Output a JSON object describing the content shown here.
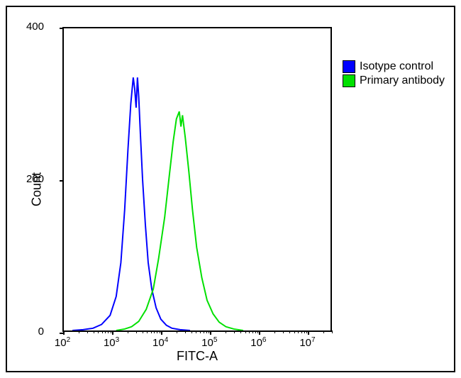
{
  "chart": {
    "type": "histogram",
    "xlabel": "FITC-A",
    "ylabel": "Count",
    "x_axis": {
      "scale": "log",
      "min": 100,
      "max": 31622776,
      "tick_exponents": [
        2,
        3,
        4,
        5,
        6,
        7
      ],
      "tick_label_prefix": "10"
    },
    "y_axis": {
      "scale": "linear",
      "min": 0,
      "max": 400,
      "ticks": [
        0,
        200,
        400
      ]
    },
    "background_color": "#ffffff",
    "axis_color": "#000000",
    "label_fontsize": 18,
    "tick_fontsize": 15,
    "series": [
      {
        "name": "Isotype control",
        "color": "#0000ff",
        "line_width": 2,
        "points": [
          [
            150,
            0
          ],
          [
            250,
            1
          ],
          [
            400,
            3
          ],
          [
            600,
            8
          ],
          [
            900,
            20
          ],
          [
            1200,
            45
          ],
          [
            1500,
            90
          ],
          [
            1800,
            160
          ],
          [
            2100,
            240
          ],
          [
            2400,
            300
          ],
          [
            2700,
            335
          ],
          [
            2900,
            320
          ],
          [
            3100,
            295
          ],
          [
            3300,
            335
          ],
          [
            3500,
            310
          ],
          [
            3800,
            260
          ],
          [
            4200,
            200
          ],
          [
            4800,
            140
          ],
          [
            5500,
            90
          ],
          [
            6500,
            55
          ],
          [
            8000,
            30
          ],
          [
            10000,
            15
          ],
          [
            13000,
            7
          ],
          [
            17000,
            3
          ],
          [
            25000,
            1
          ],
          [
            40000,
            0
          ]
        ]
      },
      {
        "name": "Primary antibody",
        "color": "#00e000",
        "line_width": 2,
        "points": [
          [
            1200,
            0
          ],
          [
            1800,
            2
          ],
          [
            2500,
            5
          ],
          [
            3500,
            12
          ],
          [
            5000,
            28
          ],
          [
            7000,
            55
          ],
          [
            9000,
            95
          ],
          [
            12000,
            150
          ],
          [
            15000,
            205
          ],
          [
            18000,
            250
          ],
          [
            21000,
            280
          ],
          [
            24000,
            290
          ],
          [
            26000,
            270
          ],
          [
            28000,
            285
          ],
          [
            32000,
            255
          ],
          [
            38000,
            210
          ],
          [
            45000,
            160
          ],
          [
            55000,
            110
          ],
          [
            70000,
            70
          ],
          [
            90000,
            40
          ],
          [
            120000,
            22
          ],
          [
            160000,
            11
          ],
          [
            220000,
            5
          ],
          [
            320000,
            2
          ],
          [
            500000,
            0
          ]
        ]
      }
    ],
    "legend": {
      "items": [
        {
          "label": "Isotype control",
          "color": "#0000ff"
        },
        {
          "label": "Primary antibody",
          "color": "#00e000"
        }
      ]
    }
  }
}
